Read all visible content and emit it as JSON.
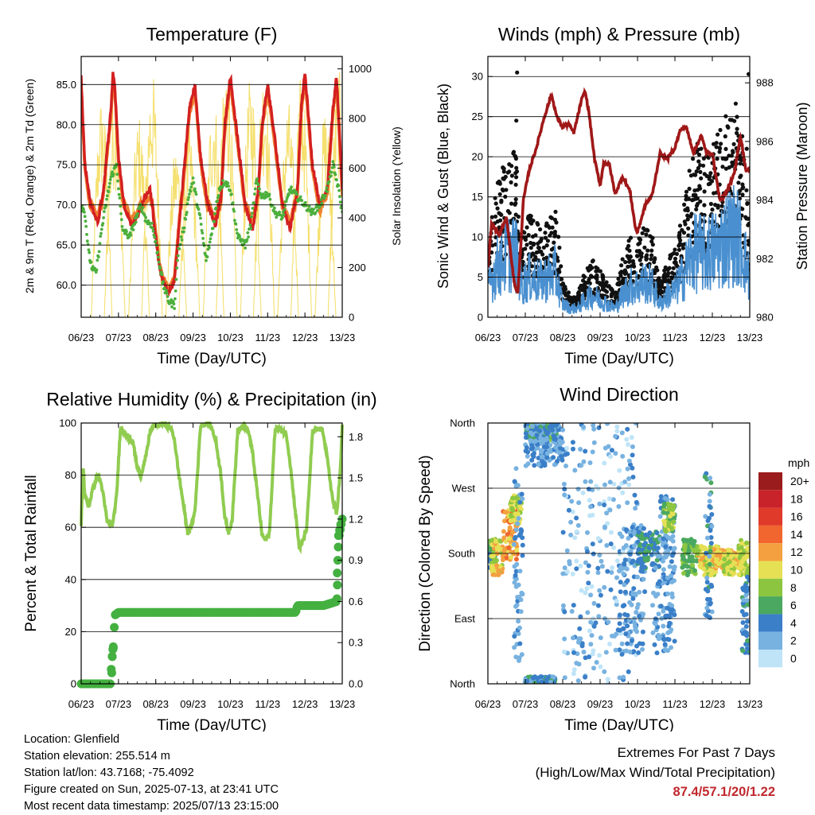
{
  "chart_data": [
    {
      "id": "temperature",
      "type": "line",
      "title": "Temperature (F)",
      "xlabel": "Time (Day/UTC)",
      "ylabel": "2m & 9m T (Red, Orange) & 2m Td (Green)",
      "y2label": "Solar Insolation (Yellow)",
      "x_ticks": [
        "06/23",
        "07/23",
        "08/23",
        "09/23",
        "10/23",
        "11/23",
        "12/23",
        "13/23"
      ],
      "ylim": [
        56,
        88.5
      ],
      "y_ticks": [
        "60.0",
        "65.0",
        "70.0",
        "75.0",
        "80.0",
        "85.0"
      ],
      "y2lim": [
        0,
        1050
      ],
      "y2_ticks": [
        "0",
        "200",
        "400",
        "600",
        "800",
        "1000"
      ],
      "colors": {
        "t2m": "#d42020",
        "t9m": "#f08030",
        "td": "#4caf3c",
        "solar": "#f5e070"
      },
      "series": [
        {
          "key": "t2m",
          "x": [
            6.0,
            6.05,
            6.1,
            6.25,
            6.45,
            6.6,
            6.8,
            6.85,
            6.9,
            7.0,
            7.15,
            7.35,
            7.5,
            7.7,
            7.85,
            8.0,
            8.1,
            8.2,
            8.35,
            8.5,
            8.6,
            8.75,
            8.9,
            9.05,
            9.2,
            9.4,
            9.6,
            9.75,
            9.85,
            10.0,
            10.2,
            10.4,
            10.6,
            10.75,
            10.85,
            11.0,
            11.2,
            11.4,
            11.6,
            11.8,
            11.9,
            12.0,
            12.2,
            12.4,
            12.6,
            12.75,
            12.85,
            13.0
          ],
          "y": [
            86.0,
            80.0,
            75.0,
            70.0,
            67.8,
            72.0,
            82.0,
            86.5,
            85.0,
            76.0,
            70.0,
            67.5,
            68.5,
            71.0,
            72.0,
            66.0,
            62.0,
            60.5,
            59.0,
            60.5,
            66.0,
            74.0,
            82.0,
            85.0,
            76.0,
            70.0,
            67.5,
            71.0,
            80.0,
            86.0,
            78.0,
            70.0,
            67.0,
            72.0,
            80.0,
            85.0,
            78.0,
            70.0,
            67.0,
            72.0,
            82.0,
            86.5,
            75.0,
            70.0,
            72.0,
            82.0,
            86.0,
            72.0
          ]
        },
        {
          "key": "td",
          "x": [
            6.0,
            6.1,
            6.2,
            6.3,
            6.4,
            6.55,
            6.7,
            6.8,
            6.95,
            7.1,
            7.3,
            7.45,
            7.6,
            7.75,
            7.9,
            8.05,
            8.2,
            8.35,
            8.5,
            8.6,
            8.75,
            8.9,
            9.0,
            9.2,
            9.35,
            9.5,
            9.7,
            9.85,
            10.0,
            10.2,
            10.4,
            10.55,
            10.7,
            10.85,
            11.0,
            11.2,
            11.4,
            11.6,
            11.8,
            12.0,
            12.2,
            12.4,
            12.6,
            12.75,
            12.9,
            13.0
          ],
          "y": [
            70.0,
            69.0,
            64.0,
            62.0,
            61.5,
            67.0,
            71.0,
            73.5,
            75.0,
            67.0,
            66.0,
            68.0,
            70.0,
            68.0,
            67.5,
            64.0,
            60.0,
            58.0,
            57.5,
            64.0,
            67.0,
            71.5,
            73.0,
            68.0,
            63.0,
            66.5,
            72.0,
            73.0,
            72.0,
            66.0,
            65.0,
            67.5,
            73.0,
            71.0,
            71.5,
            69.0,
            68.5,
            72.0,
            71.0,
            70.0,
            69.0,
            70.0,
            72.0,
            75.0,
            72.0,
            69.0
          ]
        },
        {
          "key": "solar",
          "x": [
            6.55,
            6.9,
            7.55,
            7.9,
            8.55,
            8.9,
            9.55,
            9.9,
            10.55,
            10.9,
            11.55,
            11.9,
            12.55,
            12.9
          ],
          "y": [
            900,
            930,
            820,
            1000,
            700,
            760,
            920,
            1050,
            980,
            1020,
            880,
            1000,
            850,
            1000
          ]
        }
      ]
    },
    {
      "id": "winds",
      "type": "scatter",
      "title": "Winds (mph) & Pressure (mb)",
      "xlabel": "Time (Day/UTC)",
      "ylabel": "Sonic Wind & Gust (Blue, Black)",
      "y2label": "Station Pressure (Maroon)",
      "x_ticks": [
        "06/23",
        "07/23",
        "08/23",
        "09/23",
        "10/23",
        "11/23",
        "12/23",
        "13/23"
      ],
      "ylim": [
        0,
        32.5
      ],
      "y_ticks": [
        "0",
        "5",
        "10",
        "15",
        "20",
        "25",
        "30"
      ],
      "y2lim": [
        980,
        988.9
      ],
      "y2_ticks": [
        "980",
        "982",
        "984",
        "986",
        "988"
      ],
      "colors": {
        "wind": "#4a90d0",
        "gust": "#111111",
        "pressure": "#a01818"
      },
      "series": [
        {
          "key": "gust_level",
          "x": [
            6.0,
            6.2,
            6.4,
            6.6,
            6.75,
            6.9,
            7.1,
            7.4,
            7.6,
            7.8,
            8.0,
            8.2,
            8.4,
            8.6,
            8.8,
            9.0,
            9.2,
            9.4,
            9.6,
            9.8,
            10.0,
            10.2,
            10.4,
            10.6,
            10.8,
            11.0,
            11.2,
            11.4,
            11.6,
            11.8,
            12.0,
            12.2,
            12.4,
            12.6,
            12.8,
            13.0
          ],
          "y": [
            6,
            11,
            13,
            15,
            14,
            7,
            9,
            8,
            9,
            10,
            3,
            2,
            2,
            4,
            5,
            4,
            3,
            2,
            5,
            7,
            7,
            8,
            7,
            3,
            5,
            6,
            9,
            13,
            15,
            14,
            15,
            16,
            18,
            19,
            16,
            8
          ]
        },
        {
          "key": "gust_spikes",
          "x": [
            6.78,
            6.76,
            6.74,
            12.97,
            12.92
          ],
          "y": [
            30.5,
            24.5,
            20.0,
            30.3,
            21.0
          ]
        },
        {
          "key": "pressure",
          "x": [
            6.0,
            6.1,
            6.3,
            6.5,
            6.7,
            6.8,
            6.95,
            7.1,
            7.3,
            7.5,
            7.7,
            7.85,
            8.0,
            8.15,
            8.3,
            8.5,
            8.6,
            8.7,
            8.85,
            9.0,
            9.1,
            9.25,
            9.4,
            9.6,
            9.8,
            9.95,
            10.0,
            10.2,
            10.4,
            10.6,
            10.8,
            11.0,
            11.15,
            11.3,
            11.5,
            11.7,
            11.85,
            12.0,
            12.2,
            12.4,
            12.6,
            12.75,
            12.9,
            13.0
          ],
          "y": [
            981.7,
            983.2,
            982.8,
            983.4,
            981.2,
            980.8,
            984.0,
            985.0,
            985.8,
            986.8,
            987.6,
            986.8,
            986.5,
            986.6,
            986.3,
            987.4,
            987.7,
            987.0,
            985.4,
            984.5,
            985.3,
            985.2,
            984.2,
            984.8,
            984.3,
            983.0,
            982.9,
            983.8,
            984.2,
            985.6,
            985.4,
            985.8,
            986.4,
            986.5,
            985.6,
            986.2,
            985.6,
            985.6,
            984.0,
            984.3,
            985.0,
            986.2,
            985.0,
            985.0
          ]
        }
      ]
    },
    {
      "id": "humidity",
      "type": "line",
      "title": "Relative Humidity (%) & Precipitation (in)",
      "xlabel": "Time (Day/UTC)",
      "ylabel": "Percent & Total Rainfall",
      "x_ticks": [
        "06/23",
        "07/23",
        "08/23",
        "09/23",
        "10/23",
        "11/23",
        "12/23",
        "13/23"
      ],
      "ylim": [
        0,
        100
      ],
      "y_ticks": [
        "0",
        "20",
        "40",
        "60",
        "80",
        "100"
      ],
      "y2lim": [
        0,
        1.9
      ],
      "y2_ticks": [
        "0.0",
        "0.3",
        "0.6",
        "0.9",
        "1.2",
        "1.5",
        "1.8"
      ],
      "colors": {
        "rh": "#90cc50",
        "precip": "#44b040"
      },
      "series": [
        {
          "key": "rh",
          "x": [
            6.0,
            6.05,
            6.1,
            6.2,
            6.3,
            6.45,
            6.55,
            6.7,
            6.85,
            6.95,
            7.05,
            7.2,
            7.4,
            7.5,
            7.6,
            7.75,
            7.85,
            7.95,
            8.05,
            8.2,
            8.4,
            8.5,
            8.6,
            8.75,
            8.85,
            8.95,
            9.05,
            9.2,
            9.4,
            9.5,
            9.6,
            9.75,
            9.85,
            9.95,
            10.05,
            10.2,
            10.4,
            10.5,
            10.6,
            10.75,
            10.85,
            10.95,
            11.05,
            11.2,
            11.4,
            11.5,
            11.6,
            11.75,
            11.85,
            11.95,
            12.05,
            12.2,
            12.4,
            12.5,
            12.6,
            12.75,
            12.85,
            12.95,
            13.0
          ],
          "y": [
            61,
            84,
            72,
            68,
            74,
            80,
            76,
            62,
            61,
            72,
            98,
            96,
            92,
            83,
            80,
            88,
            97,
            99,
            99,
            100,
            98,
            94,
            82,
            68,
            58,
            60,
            66,
            99,
            100,
            98,
            94,
            80,
            64,
            58,
            63,
            98,
            99,
            96,
            88,
            70,
            57,
            55,
            58,
            98,
            97,
            96,
            85,
            65,
            52,
            55,
            60,
            96,
            98,
            96,
            86,
            70,
            65,
            82,
            99
          ]
        },
        {
          "key": "precip",
          "x": [
            6.0,
            6.8,
            6.8,
            6.85,
            6.87,
            6.9,
            7.0,
            7.5,
            8.5,
            9.5,
            10.5,
            11.5,
            11.75,
            11.8,
            12.5,
            12.85,
            12.85,
            12.9,
            12.95,
            13.0
          ],
          "y": [
            0.0,
            0.0,
            0.08,
            0.25,
            0.27,
            0.5,
            0.52,
            0.52,
            0.52,
            0.52,
            0.52,
            0.52,
            0.52,
            0.57,
            0.57,
            0.6,
            0.7,
            1.05,
            1.13,
            1.2
          ]
        }
      ]
    },
    {
      "id": "wind_direction",
      "type": "scatter",
      "title": "Wind Direction",
      "xlabel": "Time (Day/UTC)",
      "ylabel": "Direction (Colored By Speed)",
      "x_ticks": [
        "06/23",
        "07/23",
        "08/23",
        "09/23",
        "10/23",
        "11/23",
        "12/23",
        "13/23"
      ],
      "y_ticks": [
        "North",
        "East",
        "South",
        "West",
        "North"
      ],
      "ylim": [
        0,
        360
      ],
      "legend_title": "mph",
      "legend_labels": [
        "20+",
        "18",
        "16",
        "14",
        "12",
        "10",
        "8",
        "6",
        "4",
        "2",
        "0"
      ],
      "legend_colors": [
        "#9b1c1c",
        "#c8222a",
        "#e03a2a",
        "#f0662e",
        "#f4a040",
        "#e6e055",
        "#8cc640",
        "#4aa860",
        "#3a7fc8",
        "#78b2e0",
        "#bfe4f8"
      ],
      "clusters": [
        {
          "x": [
            6.0,
            6.2
          ],
          "dir": [
            160,
            200
          ],
          "speed": 6
        },
        {
          "x": [
            6.1,
            6.4
          ],
          "dir": [
            150,
            200
          ],
          "speed": 10
        },
        {
          "x": [
            6.4,
            6.8
          ],
          "dir": [
            170,
            240
          ],
          "speed": 12
        },
        {
          "x": [
            6.6,
            6.9
          ],
          "dir": [
            220,
            260
          ],
          "speed": 9
        },
        {
          "x": [
            6.7,
            6.95
          ],
          "dir": [
            30,
            300
          ],
          "speed": 3
        },
        {
          "x": [
            7.0,
            7.9
          ],
          "dir": [
            335,
            360
          ],
          "speed": 6
        },
        {
          "x": [
            7.0,
            8.0
          ],
          "dir": [
            300,
            360
          ],
          "speed": 3
        },
        {
          "x": [
            7.0,
            7.8
          ],
          "dir": [
            0,
            10
          ],
          "speed": 4
        },
        {
          "x": [
            8.0,
            10.0
          ],
          "dir": [
            0,
            360
          ],
          "speed": 2
        },
        {
          "x": [
            9.5,
            10.2
          ],
          "dir": [
            40,
            220
          ],
          "speed": 3
        },
        {
          "x": [
            10.0,
            10.6
          ],
          "dir": [
            160,
            210
          ],
          "speed": 5
        },
        {
          "x": [
            10.6,
            11.0
          ],
          "dir": [
            170,
            260
          ],
          "speed": 3
        },
        {
          "x": [
            10.7,
            11.0
          ],
          "dir": [
            210,
            250
          ],
          "speed": 8
        },
        {
          "x": [
            10.4,
            11.0
          ],
          "dir": [
            40,
            180
          ],
          "speed": 3
        },
        {
          "x": [
            11.2,
            11.6
          ],
          "dir": [
            150,
            200
          ],
          "speed": 7
        },
        {
          "x": [
            11.6,
            12.2
          ],
          "dir": [
            150,
            190
          ],
          "speed": 10
        },
        {
          "x": [
            11.8,
            12.0
          ],
          "dir": [
            80,
            300
          ],
          "speed": 4
        },
        {
          "x": [
            12.1,
            12.8
          ],
          "dir": [
            160,
            185
          ],
          "speed": 11
        },
        {
          "x": [
            12.3,
            12.6
          ],
          "dir": [
            150,
            180
          ],
          "speed": 9
        },
        {
          "x": [
            12.7,
            13.0
          ],
          "dir": [
            150,
            200
          ],
          "speed": 9
        },
        {
          "x": [
            12.8,
            13.0
          ],
          "dir": [
            40,
            150
          ],
          "speed": 4
        }
      ]
    }
  ],
  "footer": {
    "location": "Location: Glenfield",
    "elevation": "Station elevation: 255.514 m",
    "latlon": "Station lat/lon: 43.7168; -75.4092",
    "created": "Figure created on Sun, 2025-07-13, at 23:41 UTC",
    "latest": "Most recent data timestamp: 2025/07/13 23:15:00"
  },
  "extremes": {
    "title": "Extremes For Past 7 Days",
    "subtitle": "(High/Low/Max Wind/Total Precipitation)",
    "values": "87.4/57.1/20/1.22"
  }
}
